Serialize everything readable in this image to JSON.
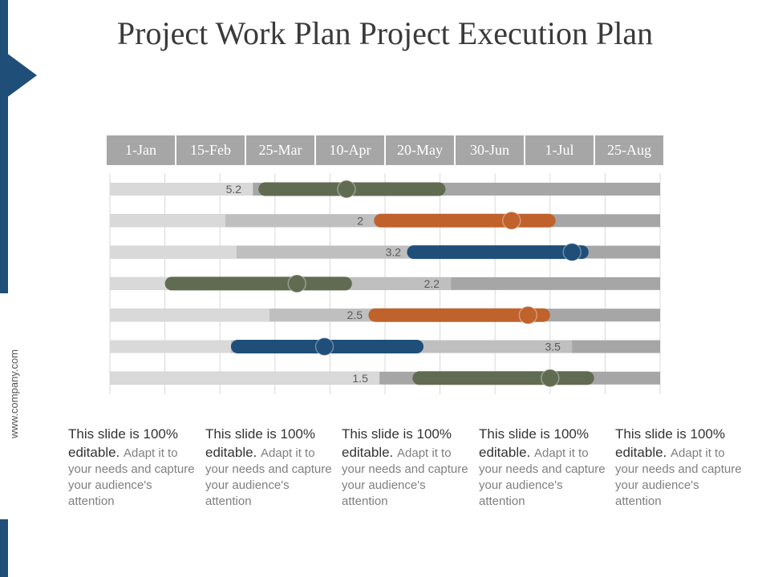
{
  "slide": {
    "title": "Project Work Plan Project Execution Plan",
    "website": "www.company.com"
  },
  "colors": {
    "navy": "#1f4e79",
    "olive": "#616b52",
    "orange": "#c0622b",
    "blue": "#1f4e79",
    "track_light": "#d9d9d9",
    "track_mid": "#bfbfbf",
    "track_dark": "#a6a6a6",
    "header_bg": "#a6a6a6"
  },
  "chart_data": {
    "type": "gantt",
    "title": "Project Work Plan Project Execution Plan",
    "date_columns": [
      "1-Jan",
      "15-Feb",
      "25-Mar",
      "10-Apr",
      "20-May",
      "30-Jun",
      "1-Jul",
      "25-Aug"
    ],
    "x_range": [
      0,
      10
    ],
    "rows": [
      {
        "label": "5.2",
        "color": "olive",
        "light_end": 2.6,
        "mid_end": 2.6,
        "bar_start": 2.7,
        "bar_end": 6.1,
        "marker": 4.3
      },
      {
        "label": "2",
        "color": "orange",
        "light_end": 2.1,
        "mid_end": 4.9,
        "bar_start": 4.8,
        "bar_end": 8.1,
        "marker": 7.3
      },
      {
        "label": "3.2",
        "color": "blue",
        "light_end": 2.3,
        "mid_end": 5.5,
        "bar_start": 5.4,
        "bar_end": 8.7,
        "marker": 8.4
      },
      {
        "label": "2.2",
        "color": "olive",
        "light_end": 3.0,
        "mid_end": 6.2,
        "bar_start": 1.0,
        "bar_end": 4.4,
        "marker": 3.4
      },
      {
        "label": "2.5",
        "color": "orange",
        "light_end": 2.9,
        "mid_end": 4.8,
        "bar_start": 4.7,
        "bar_end": 8.0,
        "marker": 7.6
      },
      {
        "label": "3.5",
        "color": "blue",
        "light_end": 2.2,
        "mid_end": 8.4,
        "bar_start": 2.2,
        "bar_end": 5.7,
        "marker": 3.9
      },
      {
        "label": "1.5",
        "color": "olive",
        "light_end": 4.9,
        "mid_end": 4.9,
        "bar_start": 5.5,
        "bar_end": 8.8,
        "marker": 8.0
      }
    ]
  },
  "notes": [
    {
      "lead": "This slide is 100% editable.",
      "body": "Adapt it to your needs and capture your audience's attention"
    },
    {
      "lead": "This slide is 100% editable.",
      "body": "Adapt it to your needs and capture your audience's attention"
    },
    {
      "lead": "This slide is 100% editable.",
      "body": "Adapt it to your needs and capture your audience's attention"
    },
    {
      "lead": "This slide is 100% editable.",
      "body": "Adapt it to your needs and capture your audience's attention"
    },
    {
      "lead": "This slide is 100% editable.",
      "body": "Adapt it to your needs and capture your audience's attention"
    }
  ]
}
